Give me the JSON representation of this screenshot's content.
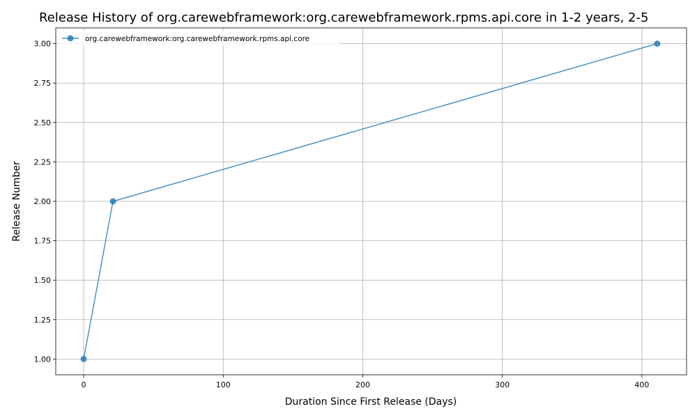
{
  "chart_data": {
    "type": "line",
    "title": "Release History of org.carewebframework:org.carewebframework.rpms.api.core in 1-2 years, 2-5",
    "xlabel": "Duration Since First Release (Days)",
    "ylabel": "Release Number",
    "xlim": [
      -20,
      432
    ],
    "ylim": [
      0.9,
      3.1
    ],
    "xticks": [
      0,
      100,
      200,
      300,
      400
    ],
    "xtick_labels": [
      "0",
      "100",
      "200",
      "300",
      "400"
    ],
    "yticks": [
      1.0,
      1.25,
      1.5,
      1.75,
      2.0,
      2.25,
      2.5,
      2.75,
      3.0
    ],
    "ytick_labels": [
      "1.00",
      "1.25",
      "1.50",
      "1.75",
      "2.00",
      "2.25",
      "2.50",
      "2.75",
      "3.00"
    ],
    "grid": true,
    "legend_position": "top-left",
    "series": [
      {
        "name": "org.carewebframework:org.carewebframework.rpms.api.core",
        "color": "#1f77b4",
        "x": [
          0,
          21,
          411
        ],
        "y": [
          1,
          2,
          3
        ]
      }
    ]
  }
}
